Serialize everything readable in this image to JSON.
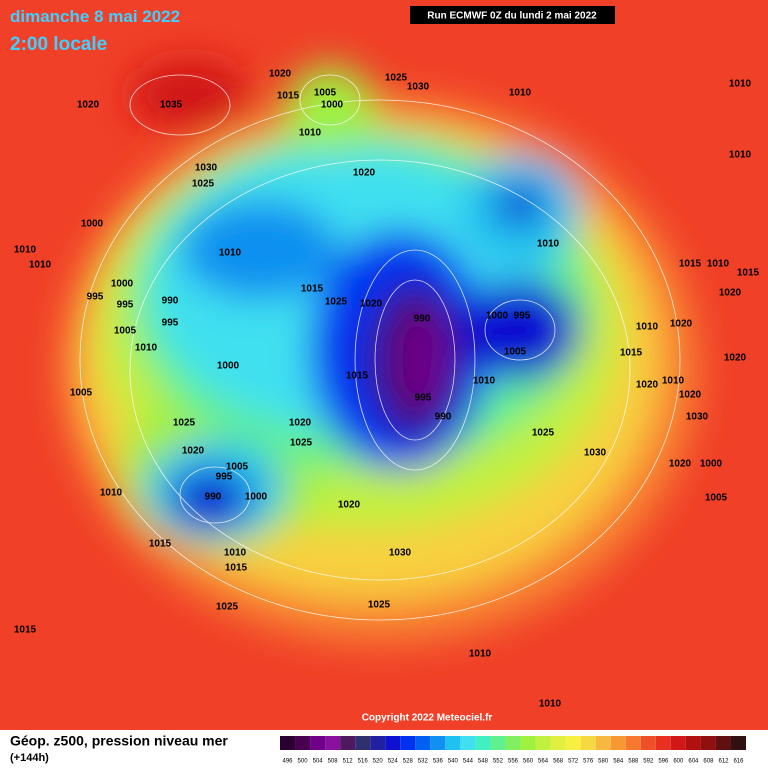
{
  "header": {
    "date": "dimanche 8 mai 2022",
    "time": "2:00 locale",
    "run": "Run ECMWF 0Z du lundi 2 mai 2022"
  },
  "map": {
    "copyright": "Copyright 2022 Meteociel.fr",
    "isobar_labels": [
      "1020",
      "1015",
      "1005",
      "1000",
      "1025",
      "1030",
      "1010",
      "1010",
      "1010",
      "1020",
      "1035",
      "1010",
      "1030",
      "1025",
      "1020",
      "1000",
      "1010",
      "1010",
      "1010",
      "1010",
      "1015",
      "1010",
      "1015",
      "1000",
      "995",
      "995",
      "990",
      "1015",
      "1025",
      "1020",
      "990",
      "1000",
      "995",
      "1005",
      "1005",
      "995",
      "1010",
      "1010",
      "1020",
      "1020",
      "1015",
      "1000",
      "1015",
      "1010",
      "1020",
      "1010",
      "1020",
      "1005",
      "995",
      "990",
      "1020",
      "1030",
      "1025",
      "1020",
      "1025",
      "1025",
      "1030",
      "1020",
      "1005",
      "995",
      "990",
      "1000",
      "1020",
      "1000",
      "1010",
      "1005",
      "1020",
      "1015",
      "1010",
      "1030",
      "1015",
      "1025",
      "1025",
      "1015",
      "1010",
      "1010"
    ]
  },
  "footer": {
    "title": "Géop. z500, pression niveau mer",
    "lead": "(+144h)",
    "scale_labels": [
      496,
      500,
      504,
      508,
      512,
      516,
      520,
      524,
      528,
      532,
      536,
      540,
      544,
      548,
      552,
      556,
      560,
      564,
      568,
      572,
      576,
      580,
      584,
      588,
      592,
      596,
      600,
      604,
      608,
      612,
      616
    ],
    "scale_colors": [
      "#2a0030",
      "#4a0050",
      "#70008a",
      "#8a10a0",
      "#501860",
      "#303070",
      "#2020a0",
      "#1010d0",
      "#0030f0",
      "#0060f0",
      "#1090f0",
      "#20c0f0",
      "#40e0f0",
      "#40f0c0",
      "#60f090",
      "#80f060",
      "#a0f040",
      "#c0f040",
      "#e0f040",
      "#f8f040",
      "#f8d840",
      "#f8b840",
      "#f89830",
      "#f87830",
      "#f05028",
      "#e83020",
      "#d01818",
      "#b01010",
      "#901010",
      "#601010",
      "#301010"
    ]
  }
}
